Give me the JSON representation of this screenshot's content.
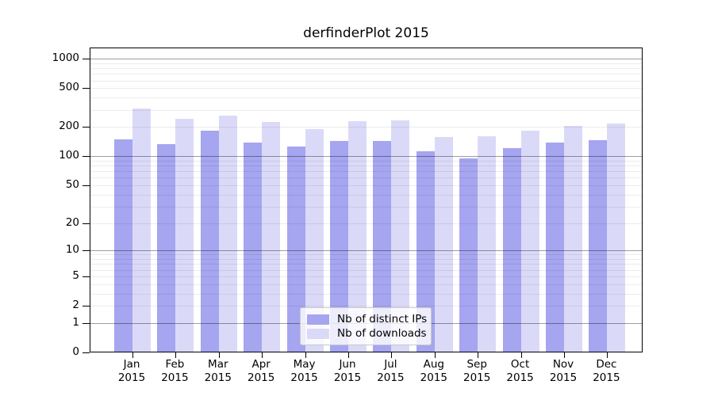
{
  "chart_data": {
    "type": "bar",
    "title": "derfinderPlot 2015",
    "categories": [
      "Jan 2015",
      "Feb 2015",
      "Mar 2015",
      "Apr 2015",
      "May 2015",
      "Jun 2015",
      "Jul 2015",
      "Aug 2015",
      "Sep 2015",
      "Oct 2015",
      "Nov 2015",
      "Dec 2015"
    ],
    "series": [
      {
        "name": "Nb of distinct IPs",
        "color": "#a5a5f0",
        "values": [
          146,
          130,
          181,
          137,
          124,
          142,
          140,
          111,
          94,
          118,
          137,
          144
        ]
      },
      {
        "name": "Nb of downloads",
        "color": "#dadaf8",
        "values": [
          305,
          240,
          258,
          222,
          188,
          226,
          231,
          154,
          158,
          181,
          203,
          213
        ]
      }
    ],
    "xlabel": "",
    "ylabel": "",
    "yscale": "log1p",
    "yticks": [
      0,
      1,
      2,
      5,
      10,
      20,
      50,
      100,
      200,
      500,
      1000
    ],
    "ylim": [
      0,
      1300
    ],
    "grid": "horizontal minor + decade major lines drawn over bars",
    "grid_minor_color": "#ececec",
    "grid_major_color": "#9e9e9e",
    "legend_position": "inside-bottom-center",
    "axis_color": "#000000",
    "background_color": "#ffffff"
  }
}
